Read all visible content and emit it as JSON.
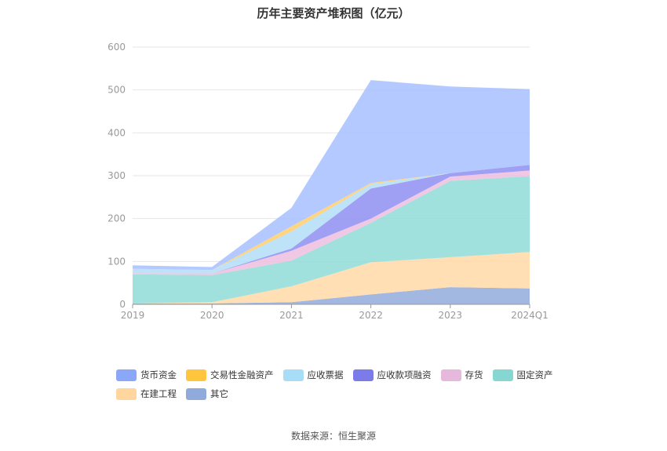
{
  "chart_data": {
    "type": "area",
    "stacked": true,
    "title": "历年主要资产堆积图（亿元）",
    "categories": [
      "2019",
      "2020",
      "2021",
      "2022",
      "2023",
      "2024Q1"
    ],
    "ylim": [
      0,
      600
    ],
    "yticks": [
      0,
      100,
      200,
      300,
      400,
      500,
      600
    ],
    "grid": true,
    "legend_position": "bottom",
    "series": [
      {
        "name": "其它",
        "color": "#93ACDB",
        "values": [
          2,
          2,
          5,
          23,
          40,
          37
        ]
      },
      {
        "name": "在建工程",
        "color": "#FFD9A6",
        "values": [
          0,
          3,
          37,
          75,
          70,
          85
        ]
      },
      {
        "name": "固定资产",
        "color": "#8FDCD8",
        "values": [
          68,
          63,
          60,
          92,
          178,
          177
        ]
      },
      {
        "name": "存货",
        "color": "#EDBEDF",
        "values": [
          3,
          4,
          23,
          10,
          10,
          13
        ]
      },
      {
        "name": "应收款项融资",
        "color": "#8E8EF2",
        "values": [
          0,
          0,
          5,
          70,
          8,
          13
        ]
      },
      {
        "name": "应收票据",
        "color": "#B3DDF7",
        "values": [
          10,
          8,
          40,
          10,
          0,
          0
        ]
      },
      {
        "name": "交易性金融资产",
        "color": "#FFCE6B",
        "values": [
          0,
          0,
          12,
          3,
          0,
          0
        ]
      },
      {
        "name": "货币资金",
        "color": "#A6BFFF",
        "values": [
          8,
          7,
          43,
          240,
          202,
          177
        ]
      }
    ],
    "legend_order": [
      "货币资金",
      "交易性金融资产",
      "应收票据",
      "应收款项融资",
      "存货",
      "固定资产",
      "在建工程",
      "其它"
    ],
    "legend_colors": {
      "货币资金": "#8AA7F8",
      "交易性金融资产": "#FFC53D",
      "应收票据": "#A8DDF8",
      "应收款项融资": "#7B7BEA",
      "存货": "#E6B8DC",
      "固定资产": "#86D6D2",
      "在建工程": "#FFD79E",
      "其它": "#8FAADB"
    }
  },
  "source_text": "数据来源：恒生聚源"
}
